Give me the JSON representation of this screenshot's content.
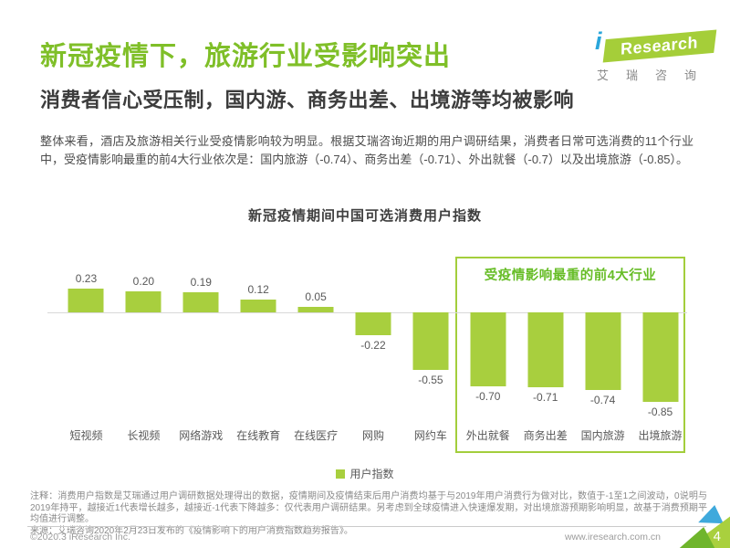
{
  "header": {
    "title": "新冠疫情下，旅游行业受影响突出",
    "subtitle": "消费者信心受压制，国内游、商务出差、出境游等均被影响",
    "paragraph": "整体来看，酒店及旅游相关行业受疫情影响较为明显。根据艾瑞咨询近期的用户调研结果，消费者日常可选消费的11个行业中，受疫情影响最重的前4大行业依次是：国内旅游（-0.74）、商务出差（-0.71）、外出就餐（-0.7）以及出境旅游（-0.85）。"
  },
  "logo": {
    "i": "i",
    "research": "Research",
    "cn": "艾瑞咨询"
  },
  "chart_data": {
    "type": "bar",
    "title": "新冠疫情期间中国可选消费用户指数",
    "categories": [
      "短视频",
      "长视频",
      "网络游戏",
      "在线教育",
      "在线医疗",
      "网购",
      "网约车",
      "外出就餐",
      "商务出差",
      "国内旅游",
      "出境旅游"
    ],
    "values": [
      0.23,
      0.2,
      0.19,
      0.12,
      0.05,
      -0.22,
      -0.55,
      -0.7,
      -0.71,
      -0.74,
      -0.85
    ],
    "value_labels": [
      "0.23",
      "0.20",
      "0.19",
      "0.12",
      "0.05",
      "-0.22",
      "-0.55",
      "-0.70",
      "-0.71",
      "-0.74",
      "-0.85"
    ],
    "legend": [
      "用户指数"
    ],
    "annotation": "受疫情影响最重的前4大行业",
    "highlight_indices": [
      7,
      8,
      9,
      10
    ],
    "ylim": [
      -1,
      1
    ],
    "grid": false,
    "legend_position": "bottom",
    "bar_color": "#A8CF3E"
  },
  "notes": {
    "note_line": "注释：消费用户指数是艾瑞通过用户调研数据处理得出的数据，疫情期间及疫情结束后用户消费均基于与2019年用户消费行为做对比，数值于-1至1之间波动，0说明与2019年持平，越接近1代表增长越多，越接近-1代表下降越多：仅代表用户调研结果。另考虑到全球疫情进入快速爆发期，对出境旅游预期影响明显，故基于消费预期平均值进行调整。",
    "source_line": "来源：艾瑞咨询2020年2月23日发布的《疫情影响下的用户消费指数趋势报告》。"
  },
  "footer": {
    "copyright": "©2020.3 iResearch Inc.",
    "website": "www.iresearch.com.cn",
    "page_number": "4"
  },
  "colors": {
    "title_green": "#7FBF28",
    "bar_green": "#A8CF3E",
    "box_border_green": "#A3CE3C",
    "annotation_green": "#67BD27",
    "logo_green": "#A5CE39",
    "logo_blue": "#2AA6DB",
    "corner_blue": "#3FA9DC",
    "corner_dark_green": "#6FB52C"
  }
}
